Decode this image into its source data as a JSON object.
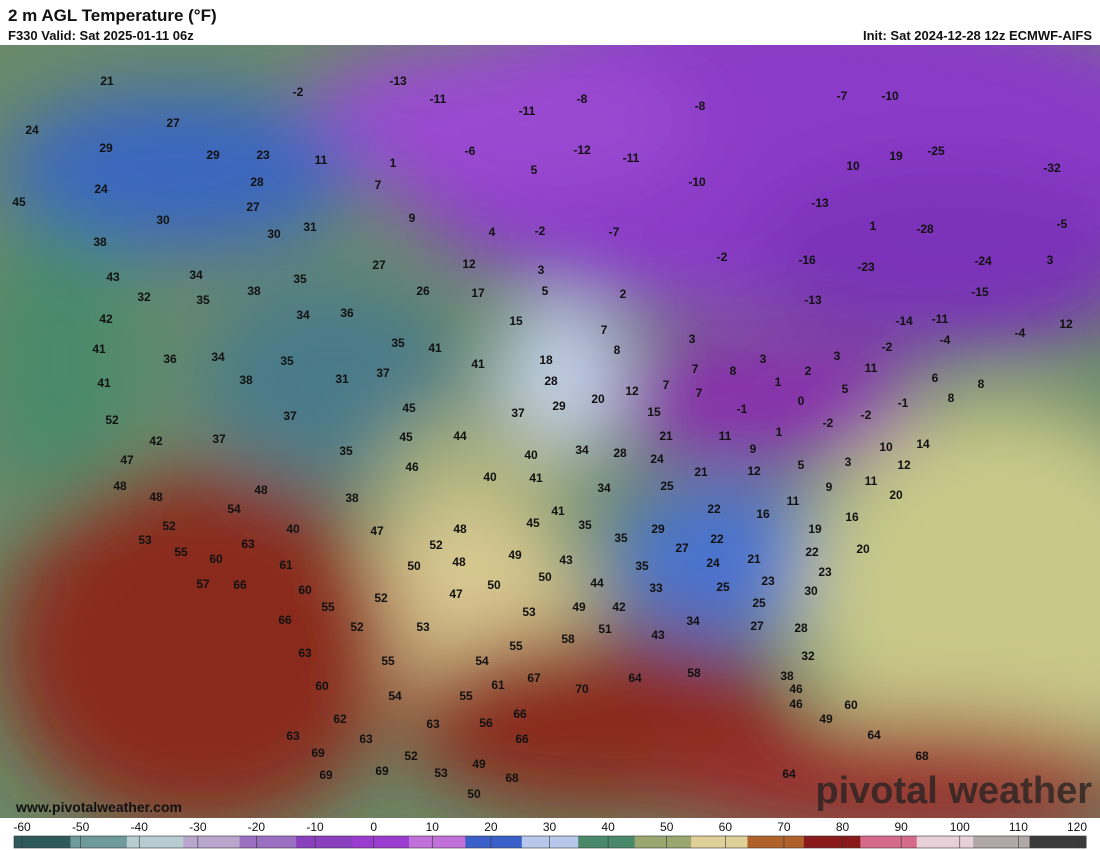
{
  "header": {
    "title": "2 m AGL Temperature (°F)",
    "valid": "F330 Valid: Sat 2025-01-11 06z",
    "init": "Init: Sat 2024-12-28 12z ECMWF-AIFS"
  },
  "watermark": "pivotal weather",
  "url": "www.pivotalweather.com",
  "colorbar": {
    "ticks": [
      -60,
      -50,
      -40,
      -30,
      -20,
      -10,
      0,
      10,
      20,
      30,
      40,
      50,
      60,
      70,
      80,
      90,
      100,
      110,
      120
    ],
    "colors": [
      "#2f5a5c",
      "#6f9a9c",
      "#b7ccd0",
      "#b9a6cc",
      "#9a6fc0",
      "#8a3fbf",
      "#9b3cd0",
      "#c070d8",
      "#3a5fc8",
      "#b8c8ec",
      "#4a8a6a",
      "#9aa870",
      "#e0d09a",
      "#b0622a",
      "#8a1a1a",
      "#d66a8a",
      "#e8d0d8",
      "#b0a8a8",
      "#3a3a3a"
    ]
  },
  "map": {
    "temperature_labels": [
      21,
      -2,
      -13,
      -11,
      -8,
      -8,
      -7,
      -10,
      24,
      27,
      -11,
      29,
      29,
      23,
      11,
      1,
      -6,
      -12,
      -11,
      10,
      19,
      -25,
      -32,
      5,
      24,
      28,
      7,
      -10,
      45,
      27,
      -13,
      30,
      9,
      1,
      -28,
      -5,
      30,
      31,
      4,
      -2,
      -7,
      38,
      -2,
      -16,
      -23,
      -24,
      3,
      43,
      34,
      35,
      27,
      12,
      3,
      38,
      26,
      17,
      5,
      2,
      -13,
      -15,
      32,
      35,
      34,
      36,
      15,
      -14,
      -11,
      12,
      42,
      7,
      3,
      -2,
      -4,
      -4,
      41,
      36,
      34,
      35,
      35,
      41,
      8,
      41,
      18,
      3,
      3,
      11,
      7,
      8,
      2,
      41,
      38,
      31,
      37,
      28,
      7,
      1,
      5,
      6,
      8,
      7,
      20,
      12,
      0,
      -1,
      8,
      29,
      45,
      37,
      15,
      -1,
      -2,
      -2,
      1,
      52,
      37,
      42,
      37,
      45,
      44,
      21,
      11,
      14,
      10,
      9,
      34,
      28,
      24,
      12,
      3,
      5,
      35,
      46,
      40,
      12,
      21,
      47,
      40,
      41,
      11,
      9,
      48,
      48,
      25,
      34,
      20,
      38,
      48,
      11,
      54,
      22,
      16,
      16,
      41,
      52,
      40,
      47,
      48,
      45,
      35,
      29,
      19,
      53,
      63,
      52,
      35,
      22,
      20,
      55,
      60,
      61,
      50,
      48,
      49,
      43,
      27,
      21,
      22,
      50,
      35,
      24,
      23,
      57,
      66,
      60,
      52,
      47,
      50,
      44,
      33,
      25,
      23,
      30,
      55,
      49,
      42,
      25,
      52,
      53,
      53,
      66,
      34,
      27,
      28,
      51,
      43,
      58,
      63,
      55,
      54,
      55,
      32,
      60,
      54,
      55,
      61,
      67,
      70,
      64,
      58,
      38,
      46,
      46,
      60,
      62,
      63,
      56,
      66,
      49,
      63,
      63,
      66,
      64,
      69,
      52,
      68,
      69,
      69,
      53,
      49,
      68,
      64,
      50
    ]
  }
}
